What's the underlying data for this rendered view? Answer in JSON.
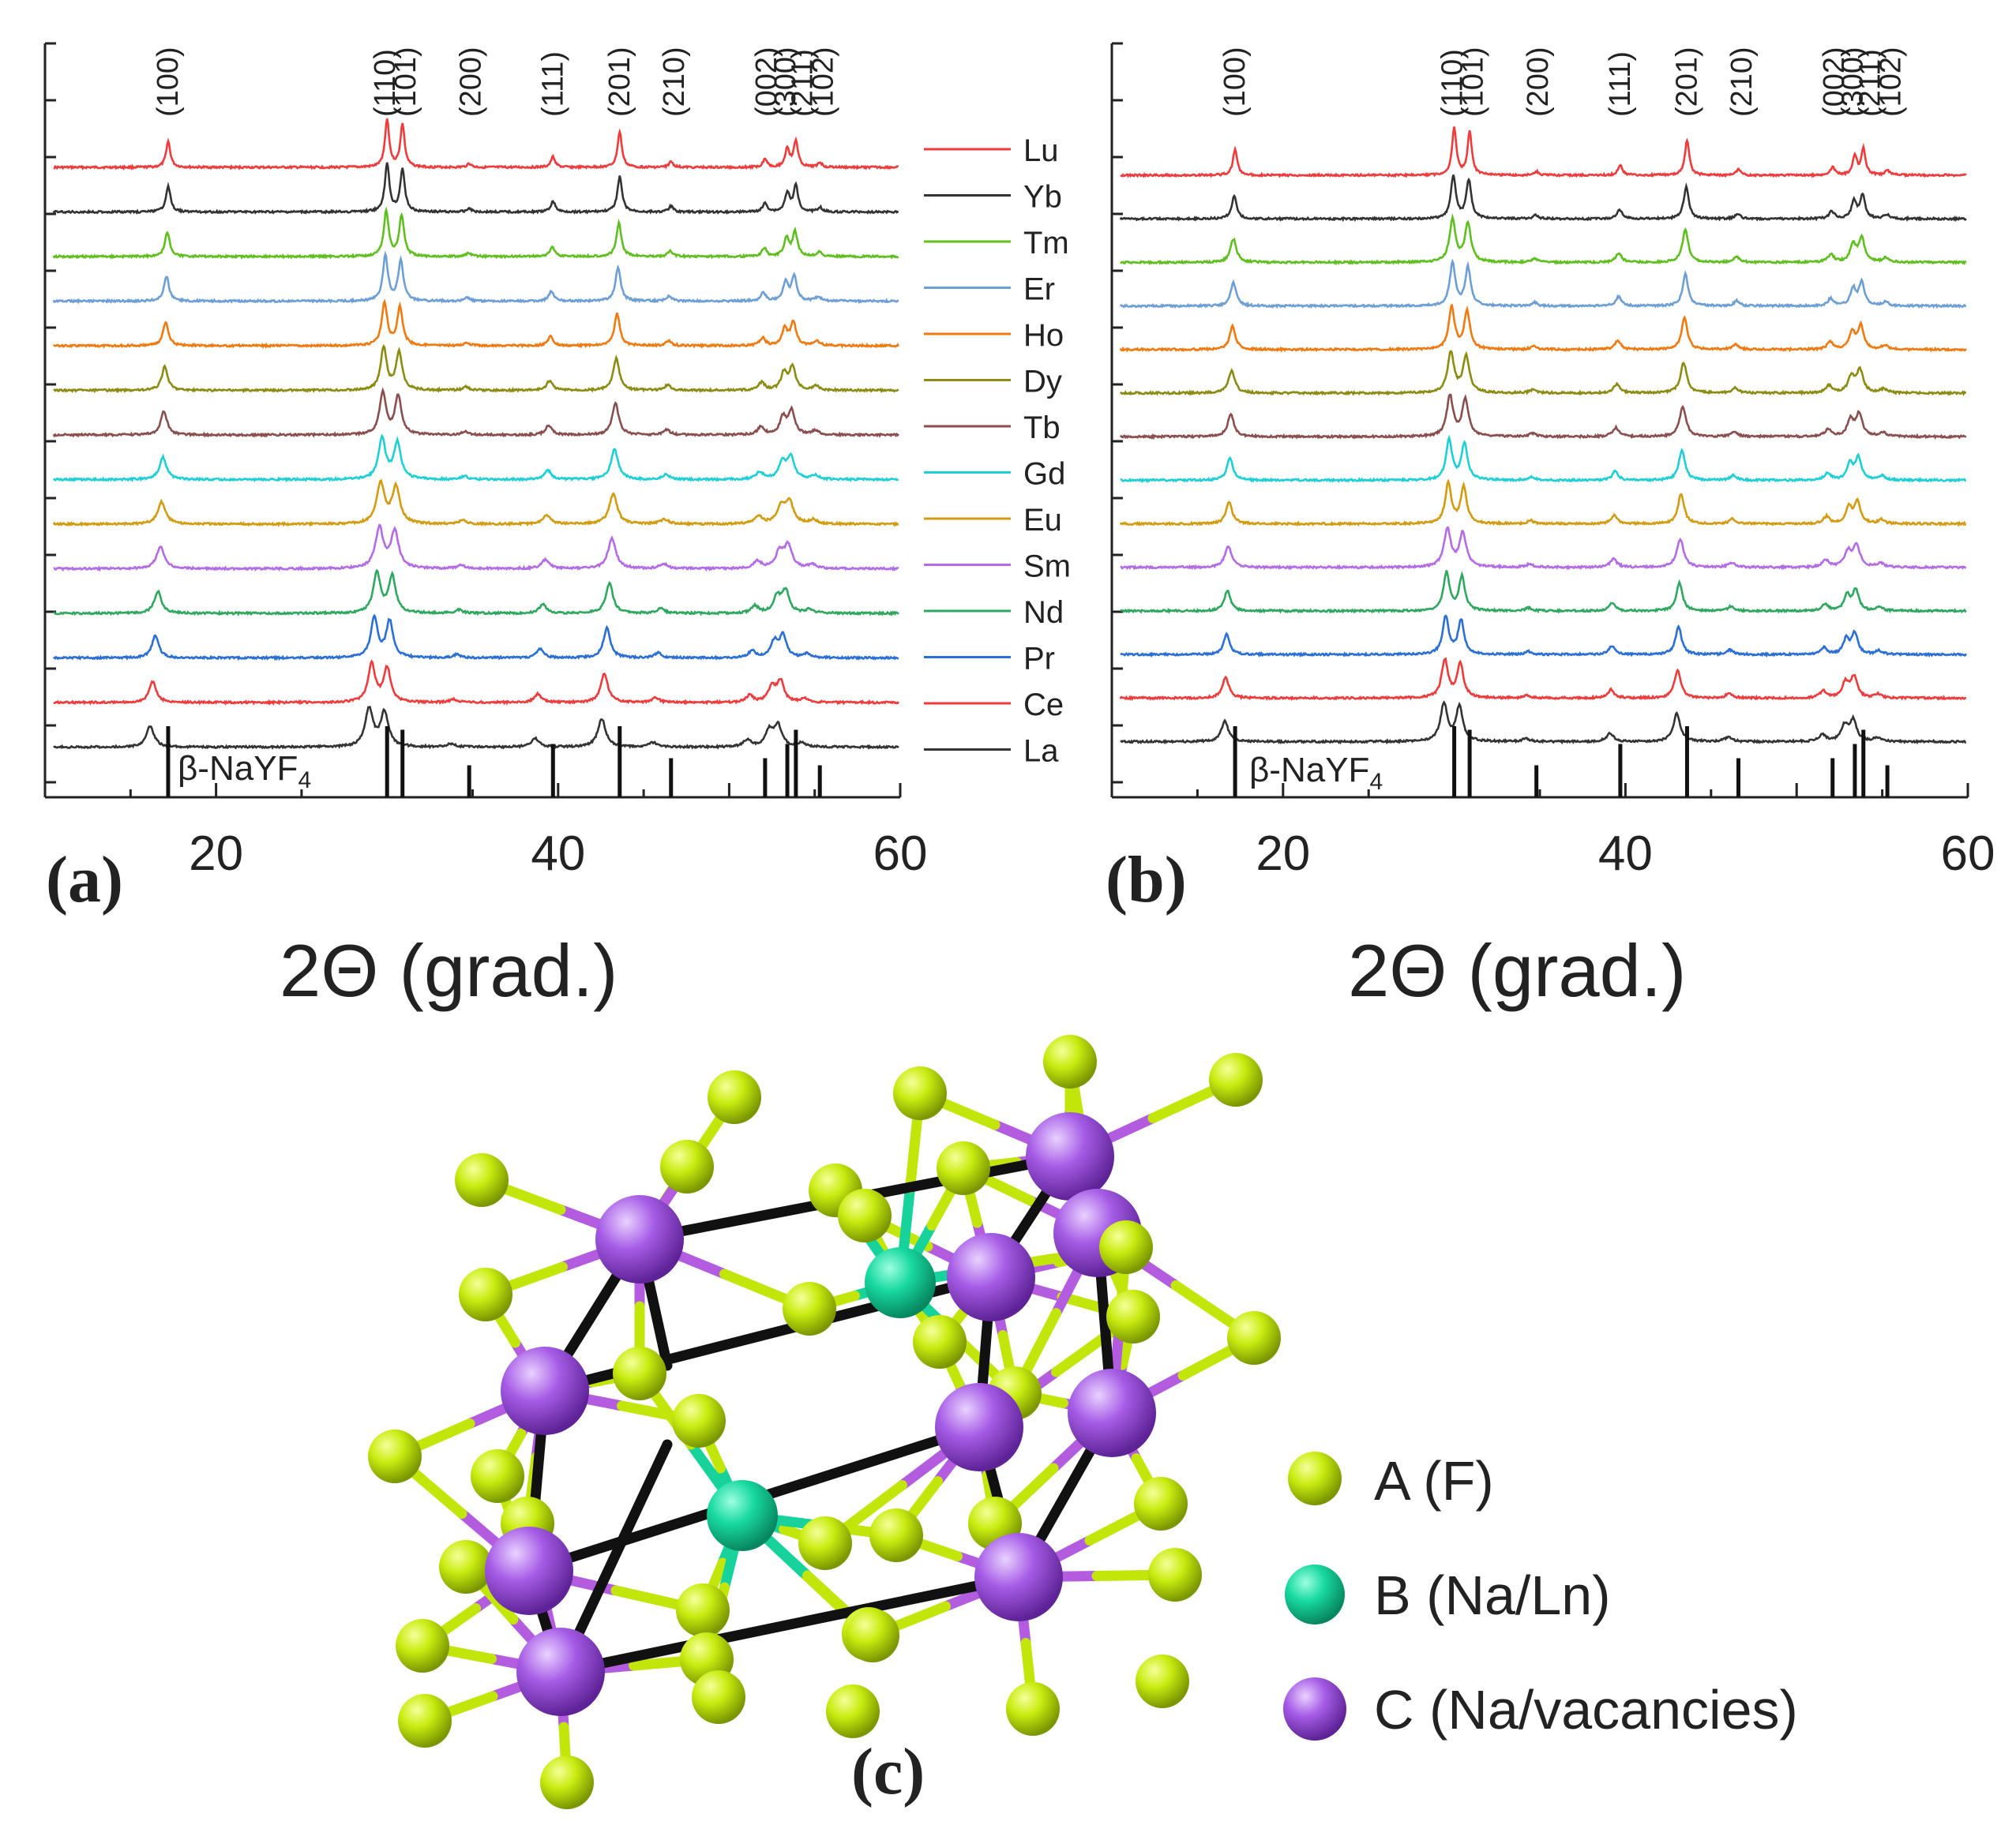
{
  "figure_labels": {
    "a": "(a)",
    "b": "(b)",
    "c": "(c)"
  },
  "chart_data": [
    {
      "type": "line",
      "panel": "(a)",
      "xlabel": "2Θ (grad.)",
      "ylabel": "",
      "xlim": [
        10,
        60
      ],
      "xticks": [
        20,
        40,
        60
      ],
      "reference_label": "β-NaYF4",
      "reference_lines": [
        {
          "x": 17.2,
          "h": 1.0
        },
        {
          "x": 30.0,
          "h": 1.0
        },
        {
          "x": 30.9,
          "h": 0.95
        },
        {
          "x": 34.8,
          "h": 0.45
        },
        {
          "x": 39.7,
          "h": 0.75
        },
        {
          "x": 43.6,
          "h": 1.0
        },
        {
          "x": 46.6,
          "h": 0.55
        },
        {
          "x": 52.1,
          "h": 0.55
        },
        {
          "x": 53.4,
          "h": 0.75
        },
        {
          "x": 53.9,
          "h": 0.95
        },
        {
          "x": 55.3,
          "h": 0.45
        }
      ],
      "peak_labels": [
        {
          "x": 17.2,
          "text": "(100)"
        },
        {
          "x": 29.9,
          "text": "(110)"
        },
        {
          "x": 31.1,
          "text": "(101)"
        },
        {
          "x": 34.9,
          "text": "(200)"
        },
        {
          "x": 39.7,
          "text": "(111)"
        },
        {
          "x": 43.6,
          "text": "(201)"
        },
        {
          "x": 46.8,
          "text": "(210)"
        },
        {
          "x": 52.2,
          "text": "(002)"
        },
        {
          "x": 53.3,
          "text": "(300)"
        },
        {
          "x": 54.3,
          "text": "(211)"
        },
        {
          "x": 55.5,
          "text": "(102)"
        }
      ],
      "series": [
        {
          "name": "Lu",
          "color": "#ef3b3b",
          "shift": 0.0,
          "fwhm": 0.3,
          "amp": 1.0
        },
        {
          "name": "Yb",
          "color": "#333333",
          "shift": 0.0,
          "fwhm": 0.32,
          "amp": 1.0
        },
        {
          "name": "Tm",
          "color": "#5fbf1f",
          "shift": -0.05,
          "fwhm": 0.34,
          "amp": 0.95
        },
        {
          "name": "Er",
          "color": "#6d9fd6",
          "shift": -0.1,
          "fwhm": 0.36,
          "amp": 0.95
        },
        {
          "name": "Ho",
          "color": "#f07a10",
          "shift": -0.15,
          "fwhm": 0.38,
          "amp": 0.9
        },
        {
          "name": "Dy",
          "color": "#8c8c12",
          "shift": -0.2,
          "fwhm": 0.42,
          "amp": 0.9
        },
        {
          "name": "Tb",
          "color": "#8a4e4e",
          "shift": -0.25,
          "fwhm": 0.45,
          "amp": 0.9
        },
        {
          "name": "Gd",
          "color": "#1ecfd6",
          "shift": -0.3,
          "fwhm": 0.5,
          "amp": 0.85
        },
        {
          "name": "Eu",
          "color": "#d39b10",
          "shift": -0.38,
          "fwhm": 0.55,
          "amp": 0.85
        },
        {
          "name": "Sm",
          "color": "#b36be6",
          "shift": -0.45,
          "fwhm": 0.55,
          "amp": 0.85
        },
        {
          "name": "Nd",
          "color": "#2ea85e",
          "shift": -0.6,
          "fwhm": 0.5,
          "amp": 0.85
        },
        {
          "name": "Pr",
          "color": "#2a6fd6",
          "shift": -0.75,
          "fwhm": 0.48,
          "amp": 0.85
        },
        {
          "name": "Ce",
          "color": "#ef3b3b",
          "shift": -0.9,
          "fwhm": 0.5,
          "amp": 0.8
        },
        {
          "name": "La",
          "color": "#333333",
          "shift": -1.05,
          "fwhm": 0.55,
          "amp": 0.8
        }
      ]
    },
    {
      "type": "line",
      "panel": "(b)",
      "xlabel": "2Θ (grad.)",
      "ylabel": "",
      "xlim": [
        10,
        60
      ],
      "xticks": [
        20,
        40,
        60
      ],
      "reference_label": "β-NaYF4",
      "reference_lines": [
        {
          "x": 17.2,
          "h": 1.0
        },
        {
          "x": 30.0,
          "h": 1.0
        },
        {
          "x": 30.9,
          "h": 0.95
        },
        {
          "x": 34.8,
          "h": 0.45
        },
        {
          "x": 39.7,
          "h": 0.75
        },
        {
          "x": 43.6,
          "h": 1.0
        },
        {
          "x": 46.6,
          "h": 0.55
        },
        {
          "x": 52.1,
          "h": 0.55
        },
        {
          "x": 53.4,
          "h": 0.75
        },
        {
          "x": 53.9,
          "h": 0.95
        },
        {
          "x": 55.3,
          "h": 0.45
        }
      ],
      "peak_labels": [
        {
          "x": 17.2,
          "text": "(100)"
        },
        {
          "x": 29.9,
          "text": "(110)"
        },
        {
          "x": 31.1,
          "text": "(101)"
        },
        {
          "x": 34.9,
          "text": "(200)"
        },
        {
          "x": 39.7,
          "text": "(111)"
        },
        {
          "x": 43.6,
          "text": "(201)"
        },
        {
          "x": 46.8,
          "text": "(210)"
        },
        {
          "x": 52.2,
          "text": "(002)"
        },
        {
          "x": 53.3,
          "text": "(300)"
        },
        {
          "x": 54.3,
          "text": "(211)"
        },
        {
          "x": 55.5,
          "text": "(102)"
        }
      ],
      "series": [
        {
          "name": "Lu",
          "color": "#ef3b3b",
          "shift": 0.0,
          "fwhm": 0.3,
          "amp": 1.0
        },
        {
          "name": "Yb",
          "color": "#333333",
          "shift": -0.05,
          "fwhm": 0.35,
          "amp": 0.9
        },
        {
          "name": "Tm",
          "color": "#5fbf1f",
          "shift": -0.1,
          "fwhm": 0.42,
          "amp": 0.9
        },
        {
          "name": "Er",
          "color": "#6d9fd6",
          "shift": -0.1,
          "fwhm": 0.38,
          "amp": 0.9
        },
        {
          "name": "Ho",
          "color": "#f07a10",
          "shift": -0.15,
          "fwhm": 0.4,
          "amp": 0.9
        },
        {
          "name": "Dy",
          "color": "#8c8c12",
          "shift": -0.2,
          "fwhm": 0.45,
          "amp": 0.85
        },
        {
          "name": "Tb",
          "color": "#8a4e4e",
          "shift": -0.25,
          "fwhm": 0.45,
          "amp": 0.85
        },
        {
          "name": "Gd",
          "color": "#1ecfd6",
          "shift": -0.3,
          "fwhm": 0.42,
          "amp": 0.85
        },
        {
          "name": "Eu",
          "color": "#d39b10",
          "shift": -0.35,
          "fwhm": 0.42,
          "amp": 0.85
        },
        {
          "name": "Sm",
          "color": "#b36be6",
          "shift": -0.4,
          "fwhm": 0.48,
          "amp": 0.8
        },
        {
          "name": "Nd",
          "color": "#2ea85e",
          "shift": -0.45,
          "fwhm": 0.42,
          "amp": 0.8
        },
        {
          "name": "Pr",
          "color": "#2a6fd6",
          "shift": -0.5,
          "fwhm": 0.42,
          "amp": 0.8
        },
        {
          "name": "Ce",
          "color": "#ef3b3b",
          "shift": -0.55,
          "fwhm": 0.45,
          "amp": 0.8
        },
        {
          "name": "La",
          "color": "#333333",
          "shift": -0.6,
          "fwhm": 0.48,
          "amp": 0.8
        }
      ]
    }
  ],
  "structure": {
    "legend": [
      {
        "name": "A (F)",
        "color": "#b5e000"
      },
      {
        "name": "B (Na/Ln)",
        "color": "#17d39b"
      },
      {
        "name": "C (Na/vacancies)",
        "color": "#a25ae0"
      }
    ]
  }
}
